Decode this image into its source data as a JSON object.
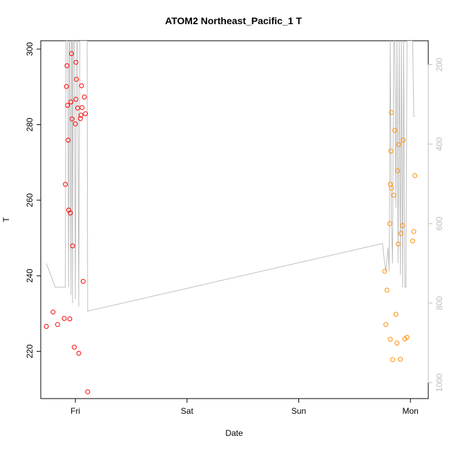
{
  "chart_data": {
    "type": "scatter",
    "title": "ATOM2 Northeast_Pacific_1 T",
    "xlabel": "Date",
    "ylabel": "T",
    "x_ticks": [
      "Fri",
      "Sat",
      "Sun",
      "Mon"
    ],
    "y_ticks": [
      "220",
      "240",
      "260",
      "280",
      "300"
    ],
    "y2_ticks": [
      "200",
      "400",
      "600",
      "800",
      "1000"
    ],
    "xlim_days": [
      -0.31,
      3.16
    ],
    "ylim": [
      207.5,
      302.2
    ],
    "y2lim": [
      1040,
      140
    ],
    "colors": {
      "series_a": "#ff0000",
      "series_b": "#ff8c00",
      "profile_line": "#bebebe"
    },
    "series": [
      {
        "points": [
          [
            -0.26,
            226.6
          ],
          [
            -0.2,
            230.4
          ],
          [
            -0.16,
            227.1
          ],
          [
            -0.1,
            228.7
          ],
          [
            -0.09,
            264.2
          ],
          [
            -0.08,
            290.1
          ],
          [
            -0.075,
            295.6
          ],
          [
            -0.07,
            285.1
          ],
          [
            -0.065,
            275.9
          ],
          [
            -0.06,
            257.4
          ],
          [
            -0.05,
            228.6
          ],
          [
            -0.045,
            256.6
          ],
          [
            -0.04,
            286.0
          ],
          [
            -0.035,
            298.8
          ],
          [
            -0.03,
            281.5
          ],
          [
            -0.025,
            247.9
          ],
          [
            -0.01,
            221.1
          ],
          [
            0.0,
            280.2
          ],
          [
            0.005,
            286.7
          ],
          [
            0.01,
            292.0
          ],
          [
            0.005,
            296.5
          ],
          [
            0.02,
            284.4
          ],
          [
            0.03,
            219.5
          ],
          [
            0.045,
            281.6
          ],
          [
            0.05,
            282.5
          ],
          [
            0.055,
            290.3
          ],
          [
            0.06,
            284.5
          ],
          [
            0.07,
            238.5
          ],
          [
            0.08,
            287.3
          ],
          [
            0.09,
            282.9
          ],
          [
            0.11,
            209.3
          ]
        ]
      },
      {
        "points": [
          [
            2.77,
            241.2
          ],
          [
            2.78,
            227.1
          ],
          [
            2.79,
            236.2
          ],
          [
            2.82,
            223.2
          ],
          [
            2.815,
            253.8
          ],
          [
            2.82,
            264.2
          ],
          [
            2.825,
            273.0
          ],
          [
            2.83,
            283.2
          ],
          [
            2.83,
            263.2
          ],
          [
            2.84,
            217.8
          ],
          [
            2.85,
            261.3
          ],
          [
            2.86,
            278.5
          ],
          [
            2.87,
            229.8
          ],
          [
            2.88,
            222.2
          ],
          [
            2.885,
            267.8
          ],
          [
            2.89,
            248.4
          ],
          [
            2.895,
            274.7
          ],
          [
            2.91,
            217.9
          ],
          [
            2.915,
            251.2
          ],
          [
            2.93,
            253.3
          ],
          [
            2.935,
            275.9
          ],
          [
            2.95,
            223.3
          ],
          [
            2.97,
            223.7
          ],
          [
            3.02,
            249.2
          ],
          [
            3.03,
            251.7
          ],
          [
            3.04,
            266.5
          ]
        ]
      }
    ],
    "depth_profile": {
      "x": [
        -0.26,
        -0.18,
        -0.11,
        -0.09,
        -0.085,
        -0.07,
        -0.06,
        -0.055,
        -0.05,
        -0.04,
        -0.035,
        -0.03,
        -0.025,
        -0.02,
        -0.01,
        0.0,
        0.01,
        0.02,
        0.03,
        0.04,
        0.05,
        0.06,
        0.07,
        0.08,
        0.09,
        0.1,
        0.105,
        0.11,
        2.75,
        2.77,
        2.78,
        2.79,
        2.8,
        2.81,
        2.82,
        2.83,
        2.84,
        2.85,
        2.86,
        2.87,
        2.88,
        2.89,
        2.9,
        2.91,
        2.92,
        2.93,
        2.94,
        2.95,
        2.96,
        2.97,
        2.98,
        2.99,
        3.0,
        3.01,
        3.02,
        3.03,
        3.04
      ],
      "depth": [
        700,
        760,
        760,
        760,
        140,
        140,
        760,
        140,
        140,
        780,
        140,
        140,
        800,
        140,
        140,
        790,
        140,
        140,
        810,
        140,
        140,
        140,
        140,
        140,
        140,
        140,
        140,
        820,
        650,
        700,
        720,
        690,
        660,
        720,
        140,
        600,
        700,
        140,
        140,
        560,
        140,
        700,
        140,
        730,
        140,
        760,
        140,
        760,
        760,
        140,
        140,
        140,
        140,
        140,
        140,
        330,
        330
      ]
    }
  }
}
